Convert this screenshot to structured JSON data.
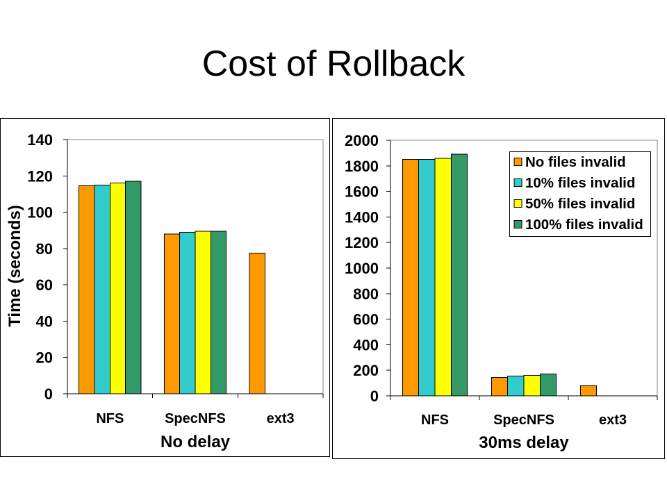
{
  "slide": {
    "title": "Cost of Rollback"
  },
  "chart_data": [
    {
      "type": "bar",
      "xlabel": "No delay",
      "ylabel": "Time (seconds)",
      "categories": [
        "NFS",
        "SpecNFS",
        "ext3"
      ],
      "ylim": [
        0,
        140
      ],
      "yticks": [
        0,
        20,
        40,
        60,
        80,
        100,
        120,
        140
      ],
      "grid": false,
      "legend": "none",
      "series": [
        {
          "color": "#FF9900",
          "values": [
            114.5,
            88,
            77.5
          ]
        },
        {
          "color": "#33CCCC",
          "values": [
            115,
            89,
            null
          ]
        },
        {
          "color": "#FFFF00",
          "values": [
            116,
            89.5,
            null
          ]
        },
        {
          "color": "#339966",
          "values": [
            117,
            89.5,
            null
          ]
        }
      ]
    },
    {
      "type": "bar",
      "xlabel": "30ms delay",
      "categories": [
        "NFS",
        "SpecNFS",
        "ext3"
      ],
      "ylim": [
        0,
        2000
      ],
      "yticks": [
        0,
        200,
        400,
        600,
        800,
        1000,
        1200,
        1400,
        1600,
        1800,
        2000
      ],
      "grid": false,
      "legend": "top-right",
      "series": [
        {
          "name": "No files invalid",
          "color": "#FF9900",
          "values": [
            1850,
            145,
            80
          ]
        },
        {
          "name": "10% files invalid",
          "color": "#33CCCC",
          "values": [
            1850,
            155,
            null
          ]
        },
        {
          "name": "50% files invalid",
          "color": "#FFFF00",
          "values": [
            1860,
            160,
            null
          ]
        },
        {
          "name": "100% files invalid",
          "color": "#339966",
          "values": [
            1890,
            170,
            null
          ]
        }
      ]
    }
  ]
}
